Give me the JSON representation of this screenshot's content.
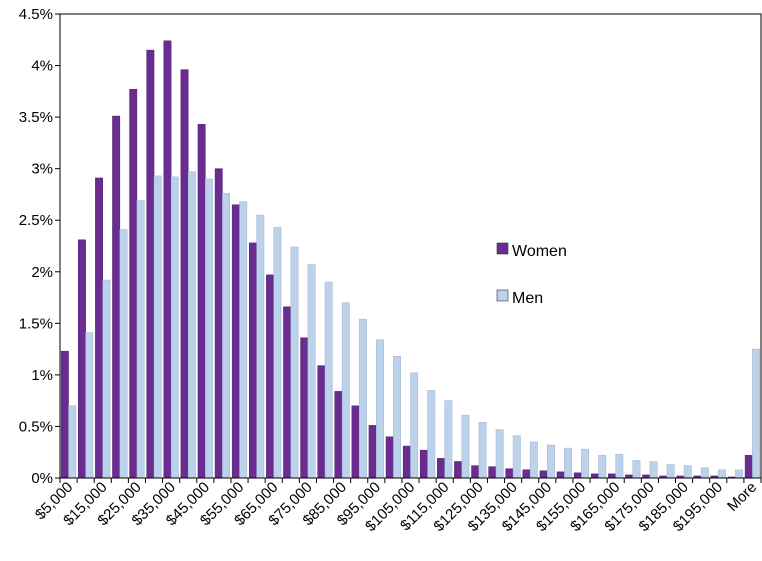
{
  "chart_data": {
    "type": "bar",
    "title": "",
    "xlabel": "",
    "ylabel": "",
    "ylim": [
      0,
      4.5
    ],
    "y_ticks": [
      "0%",
      "0.5%",
      "1%",
      "1.5%",
      "2%",
      "2.5%",
      "3%",
      "3.5%",
      "4%",
      "4.5%"
    ],
    "grid": false,
    "legend_position": "center-right",
    "categories": [
      "$5,000",
      "$10,000",
      "$15,000",
      "$20,000",
      "$25,000",
      "$30,000",
      "$35,000",
      "$40,000",
      "$45,000",
      "$50,000",
      "$55,000",
      "$60,000",
      "$65,000",
      "$70,000",
      "$75,000",
      "$80,000",
      "$85,000",
      "$90,000",
      "$95,000",
      "$100,000",
      "$105,000",
      "$110,000",
      "$115,000",
      "$120,000",
      "$125,000",
      "$130,000",
      "$135,000",
      "$140,000",
      "$145,000",
      "$150,000",
      "$155,000",
      "$160,000",
      "$165,000",
      "$170,000",
      "$175,000",
      "$180,000",
      "$185,000",
      "$190,000",
      "$195,000",
      "$200,000",
      "More"
    ],
    "x_tick_labels": [
      "$5,000",
      "",
      "$15,000",
      "",
      "$25,000",
      "",
      "$35,000",
      "",
      "$45,000",
      "",
      "$55,000",
      "",
      "$65,000",
      "",
      "$75,000",
      "",
      "$85,000",
      "",
      "$95,000",
      "",
      "$105,000",
      "",
      "$115,000",
      "",
      "$125,000",
      "",
      "$135,000",
      "",
      "$145,000",
      "",
      "$155,000",
      "",
      "$165,000",
      "",
      "$175,000",
      "",
      "$185,000",
      "",
      "$195,000",
      "",
      "More"
    ],
    "series": [
      {
        "name": "Women",
        "color": "#6a2c91",
        "values": [
          1.23,
          2.31,
          2.91,
          3.51,
          3.77,
          4.15,
          4.24,
          3.96,
          3.43,
          3.0,
          2.65,
          2.28,
          1.97,
          1.66,
          1.36,
          1.09,
          0.84,
          0.7,
          0.51,
          0.4,
          0.31,
          0.27,
          0.19,
          0.16,
          0.12,
          0.11,
          0.09,
          0.08,
          0.07,
          0.06,
          0.05,
          0.04,
          0.04,
          0.03,
          0.03,
          0.02,
          0.02,
          0.02,
          0.02,
          0.01,
          0.22
        ]
      },
      {
        "name": "Men",
        "color": "#bcd2ea",
        "values": [
          0.7,
          1.41,
          1.92,
          2.41,
          2.69,
          2.93,
          2.92,
          2.97,
          2.9,
          2.76,
          2.68,
          2.55,
          2.43,
          2.24,
          2.07,
          1.9,
          1.7,
          1.54,
          1.34,
          1.18,
          1.02,
          0.85,
          0.75,
          0.61,
          0.54,
          0.47,
          0.41,
          0.35,
          0.32,
          0.29,
          0.28,
          0.22,
          0.23,
          0.17,
          0.16,
          0.13,
          0.12,
          0.1,
          0.08,
          0.08,
          1.25
        ]
      }
    ]
  }
}
